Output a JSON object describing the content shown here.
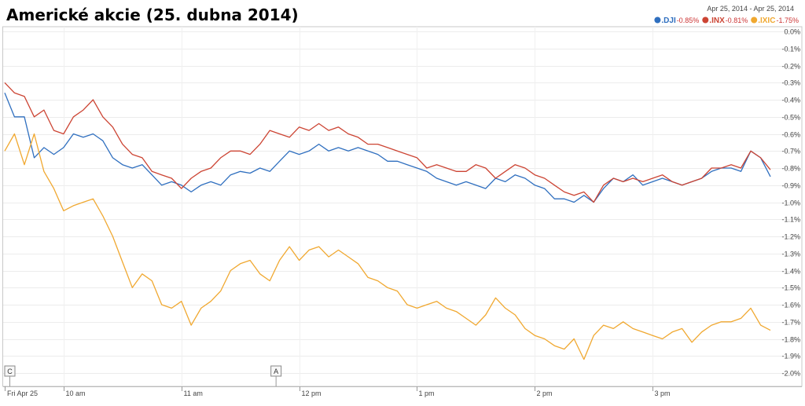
{
  "chart_data": {
    "type": "line",
    "title": "Americké akcie (25. dubna 2014)",
    "date_range": "Apr 25, 2014  -  Apr 25, 2014",
    "y_unit": "%",
    "ylim": [
      -2.0,
      0.0
    ],
    "y_ticks": [
      "0.0%",
      "-0.1%",
      "-0.2%",
      "-0.3%",
      "-0.4%",
      "-0.5%",
      "-0.6%",
      "-0.7%",
      "-0.8%",
      "-0.9%",
      "-1.0%",
      "-1.1%",
      "-1.2%",
      "-1.3%",
      "-1.4%",
      "-1.5%",
      "-1.6%",
      "-1.7%",
      "-1.8%",
      "-1.9%",
      "-2.0%"
    ],
    "x_ticks": [
      "Fri Apr 25",
      "10 am",
      "11 am",
      "12 pm",
      "1 pm",
      "2 pm",
      "3 pm"
    ],
    "x_tick_times": [
      9.5,
      10,
      11,
      12,
      13,
      14,
      15
    ],
    "x_range": [
      9.5,
      16.0
    ],
    "grid": true,
    "legend_position": "top-right",
    "annotations": [
      {
        "label": "C",
        "time": 9.54
      },
      {
        "label": "A",
        "time": 11.8
      }
    ],
    "series": [
      {
        "name": ".DJI",
        "change": "-0.85%",
        "color": "#2f6fbf",
        "x": [
          9.5,
          9.583,
          9.667,
          9.75,
          9.833,
          9.917,
          10.0,
          10.083,
          10.167,
          10.25,
          10.333,
          10.417,
          10.5,
          10.583,
          10.667,
          10.75,
          10.833,
          10.917,
          11.0,
          11.083,
          11.167,
          11.25,
          11.333,
          11.417,
          11.5,
          11.583,
          11.667,
          11.75,
          11.833,
          11.917,
          12.0,
          12.083,
          12.167,
          12.25,
          12.333,
          12.417,
          12.5,
          12.583,
          12.667,
          12.75,
          12.833,
          12.917,
          13.0,
          13.083,
          13.167,
          13.25,
          13.333,
          13.417,
          13.5,
          13.583,
          13.667,
          13.75,
          13.833,
          13.917,
          14.0,
          14.083,
          14.167,
          14.25,
          14.333,
          14.417,
          14.5,
          14.583,
          14.667,
          14.75,
          14.833,
          14.917,
          15.0,
          15.083,
          15.167,
          15.25,
          15.333,
          15.417,
          15.5,
          15.583,
          15.667,
          15.75,
          15.833,
          15.917,
          16.0
        ],
        "y": [
          -0.36,
          -0.5,
          -0.5,
          -0.74,
          -0.68,
          -0.72,
          -0.68,
          -0.6,
          -0.62,
          -0.6,
          -0.64,
          -0.74,
          -0.78,
          -0.8,
          -0.78,
          -0.84,
          -0.9,
          -0.88,
          -0.9,
          -0.94,
          -0.9,
          -0.88,
          -0.9,
          -0.84,
          -0.82,
          -0.83,
          -0.8,
          -0.82,
          -0.76,
          -0.7,
          -0.72,
          -0.7,
          -0.66,
          -0.7,
          -0.68,
          -0.7,
          -0.68,
          -0.7,
          -0.72,
          -0.76,
          -0.76,
          -0.78,
          -0.8,
          -0.82,
          -0.86,
          -0.88,
          -0.9,
          -0.88,
          -0.9,
          -0.92,
          -0.86,
          -0.88,
          -0.84,
          -0.86,
          -0.9,
          -0.92,
          -0.98,
          -0.98,
          -1.0,
          -0.96,
          -1.0,
          -0.92,
          -0.86,
          -0.88,
          -0.84,
          -0.9,
          -0.88,
          -0.86,
          -0.88,
          -0.9,
          -0.88,
          -0.86,
          -0.82,
          -0.8,
          -0.8,
          -0.82,
          -0.7,
          -0.74,
          -0.85
        ]
      },
      {
        "name": ".INX",
        "change": "-0.81%",
        "color": "#cc4433",
        "x": [
          9.5,
          9.583,
          9.667,
          9.75,
          9.833,
          9.917,
          10.0,
          10.083,
          10.167,
          10.25,
          10.333,
          10.417,
          10.5,
          10.583,
          10.667,
          10.75,
          10.833,
          10.917,
          11.0,
          11.083,
          11.167,
          11.25,
          11.333,
          11.417,
          11.5,
          11.583,
          11.667,
          11.75,
          11.833,
          11.917,
          12.0,
          12.083,
          12.167,
          12.25,
          12.333,
          12.417,
          12.5,
          12.583,
          12.667,
          12.75,
          12.833,
          12.917,
          13.0,
          13.083,
          13.167,
          13.25,
          13.333,
          13.417,
          13.5,
          13.583,
          13.667,
          13.75,
          13.833,
          13.917,
          14.0,
          14.083,
          14.167,
          14.25,
          14.333,
          14.417,
          14.5,
          14.583,
          14.667,
          14.75,
          14.833,
          14.917,
          15.0,
          15.083,
          15.167,
          15.25,
          15.333,
          15.417,
          15.5,
          15.583,
          15.667,
          15.75,
          15.833,
          15.917,
          16.0
        ],
        "y": [
          -0.3,
          -0.36,
          -0.38,
          -0.5,
          -0.46,
          -0.58,
          -0.6,
          -0.5,
          -0.46,
          -0.4,
          -0.5,
          -0.56,
          -0.66,
          -0.72,
          -0.74,
          -0.82,
          -0.84,
          -0.86,
          -0.92,
          -0.86,
          -0.82,
          -0.8,
          -0.74,
          -0.7,
          -0.7,
          -0.72,
          -0.66,
          -0.58,
          -0.6,
          -0.62,
          -0.56,
          -0.58,
          -0.54,
          -0.58,
          -0.56,
          -0.6,
          -0.62,
          -0.66,
          -0.66,
          -0.68,
          -0.7,
          -0.72,
          -0.74,
          -0.8,
          -0.78,
          -0.8,
          -0.82,
          -0.82,
          -0.78,
          -0.8,
          -0.86,
          -0.82,
          -0.78,
          -0.8,
          -0.84,
          -0.86,
          -0.9,
          -0.94,
          -0.96,
          -0.94,
          -1.0,
          -0.9,
          -0.86,
          -0.88,
          -0.86,
          -0.88,
          -0.86,
          -0.84,
          -0.88,
          -0.9,
          -0.88,
          -0.86,
          -0.8,
          -0.8,
          -0.78,
          -0.8,
          -0.7,
          -0.74,
          -0.81
        ]
      },
      {
        "name": ".IXIC",
        "change": "-1.75%",
        "color": "#f0a830",
        "x": [
          9.5,
          9.583,
          9.667,
          9.75,
          9.833,
          9.917,
          10.0,
          10.083,
          10.167,
          10.25,
          10.333,
          10.417,
          10.5,
          10.583,
          10.667,
          10.75,
          10.833,
          10.917,
          11.0,
          11.083,
          11.167,
          11.25,
          11.333,
          11.417,
          11.5,
          11.583,
          11.667,
          11.75,
          11.833,
          11.917,
          12.0,
          12.083,
          12.167,
          12.25,
          12.333,
          12.417,
          12.5,
          12.583,
          12.667,
          12.75,
          12.833,
          12.917,
          13.0,
          13.083,
          13.167,
          13.25,
          13.333,
          13.417,
          13.5,
          13.583,
          13.667,
          13.75,
          13.833,
          13.917,
          14.0,
          14.083,
          14.167,
          14.25,
          14.333,
          14.417,
          14.5,
          14.583,
          14.667,
          14.75,
          14.833,
          14.917,
          15.0,
          15.083,
          15.167,
          15.25,
          15.333,
          15.417,
          15.5,
          15.583,
          15.667,
          15.75,
          15.833,
          15.917,
          16.0
        ],
        "y": [
          -0.7,
          -0.6,
          -0.78,
          -0.6,
          -0.82,
          -0.92,
          -1.05,
          -1.02,
          -1.0,
          -0.98,
          -1.08,
          -1.2,
          -1.35,
          -1.5,
          -1.42,
          -1.46,
          -1.6,
          -1.62,
          -1.58,
          -1.72,
          -1.62,
          -1.58,
          -1.52,
          -1.4,
          -1.36,
          -1.34,
          -1.42,
          -1.46,
          -1.34,
          -1.26,
          -1.34,
          -1.28,
          -1.26,
          -1.32,
          -1.28,
          -1.32,
          -1.36,
          -1.44,
          -1.46,
          -1.5,
          -1.52,
          -1.6,
          -1.62,
          -1.6,
          -1.58,
          -1.62,
          -1.64,
          -1.68,
          -1.72,
          -1.66,
          -1.56,
          -1.62,
          -1.66,
          -1.74,
          -1.78,
          -1.8,
          -1.84,
          -1.86,
          -1.8,
          -1.92,
          -1.78,
          -1.72,
          -1.74,
          -1.7,
          -1.74,
          -1.76,
          -1.78,
          -1.8,
          -1.76,
          -1.74,
          -1.82,
          -1.76,
          -1.72,
          -1.7,
          -1.7,
          -1.68,
          -1.62,
          -1.72,
          -1.75
        ]
      }
    ]
  }
}
